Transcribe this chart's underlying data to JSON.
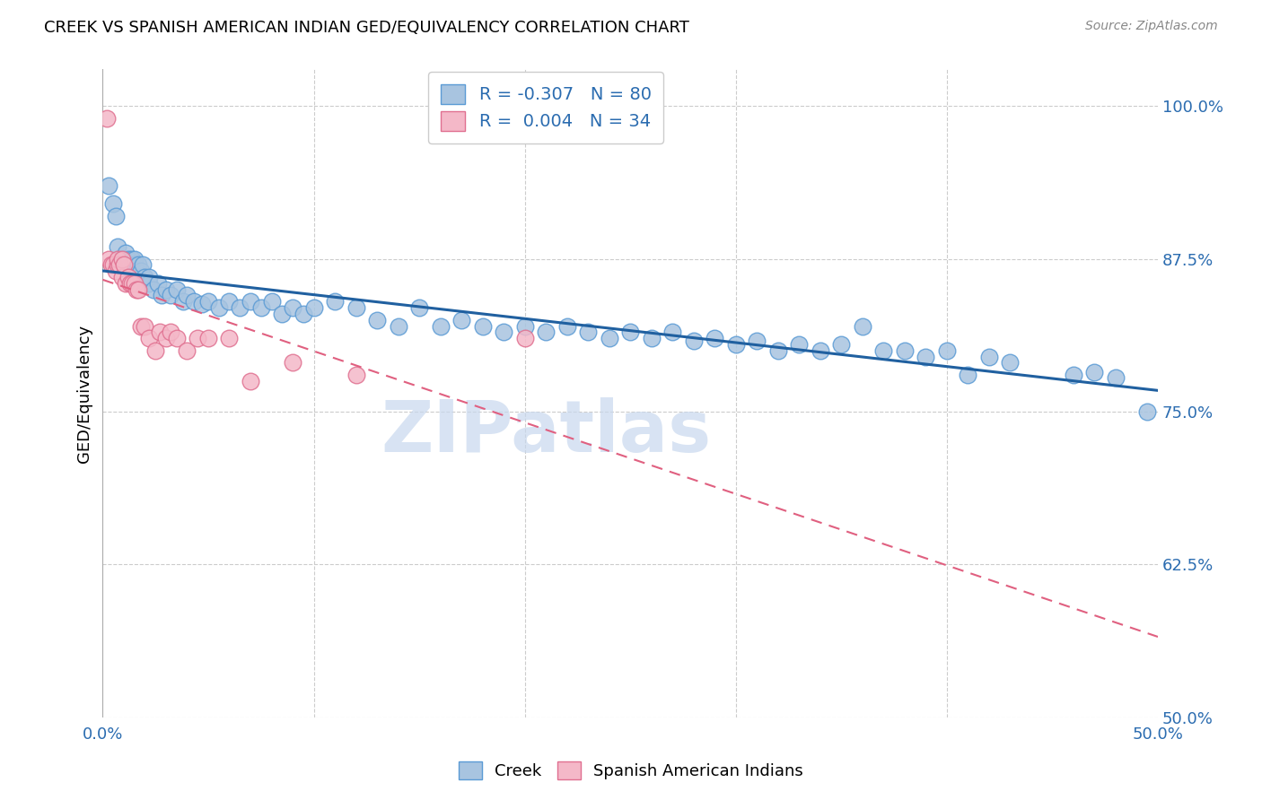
{
  "title": "CREEK VS SPANISH AMERICAN INDIAN GED/EQUIVALENCY CORRELATION CHART",
  "source": "Source: ZipAtlas.com",
  "ylabel": "GED/Equivalency",
  "xlim": [
    0.0,
    0.5
  ],
  "ylim": [
    0.5,
    1.03
  ],
  "xticks": [
    0.0,
    0.1,
    0.2,
    0.3,
    0.4,
    0.5
  ],
  "xtick_labels": [
    "0.0%",
    "",
    "",
    "",
    "",
    "50.0%"
  ],
  "ytick_labels": [
    "50.0%",
    "62.5%",
    "75.0%",
    "87.5%",
    "100.0%"
  ],
  "yticks": [
    0.5,
    0.625,
    0.75,
    0.875,
    1.0
  ],
  "creek_color": "#a8c4e0",
  "creek_edge": "#5b9bd5",
  "spanish_color": "#f4b8c8",
  "spanish_edge": "#e07090",
  "trend_creek_color": "#2060a0",
  "trend_spanish_color": "#e06080",
  "legend_creek_label": "R = -0.307   N = 80",
  "legend_spanish_label": "R =  0.004   N = 34",
  "watermark": "ZIPatlas",
  "creek_x": [
    0.003,
    0.005,
    0.006,
    0.007,
    0.008,
    0.009,
    0.009,
    0.01,
    0.011,
    0.012,
    0.013,
    0.014,
    0.015,
    0.015,
    0.016,
    0.017,
    0.018,
    0.018,
    0.019,
    0.02,
    0.022,
    0.022,
    0.024,
    0.026,
    0.028,
    0.03,
    0.032,
    0.035,
    0.038,
    0.04,
    0.043,
    0.047,
    0.05,
    0.055,
    0.06,
    0.065,
    0.07,
    0.075,
    0.08,
    0.085,
    0.09,
    0.095,
    0.1,
    0.11,
    0.12,
    0.13,
    0.14,
    0.15,
    0.16,
    0.17,
    0.18,
    0.19,
    0.2,
    0.21,
    0.22,
    0.23,
    0.24,
    0.25,
    0.26,
    0.27,
    0.28,
    0.29,
    0.3,
    0.31,
    0.32,
    0.33,
    0.34,
    0.35,
    0.36,
    0.37,
    0.38,
    0.39,
    0.4,
    0.41,
    0.42,
    0.43,
    0.46,
    0.47,
    0.48,
    0.495
  ],
  "creek_y": [
    0.935,
    0.92,
    0.91,
    0.885,
    0.875,
    0.875,
    0.87,
    0.875,
    0.88,
    0.875,
    0.87,
    0.875,
    0.87,
    0.875,
    0.865,
    0.87,
    0.86,
    0.865,
    0.87,
    0.86,
    0.855,
    0.86,
    0.85,
    0.855,
    0.845,
    0.85,
    0.845,
    0.85,
    0.84,
    0.845,
    0.84,
    0.838,
    0.84,
    0.835,
    0.84,
    0.835,
    0.84,
    0.835,
    0.84,
    0.83,
    0.835,
    0.83,
    0.835,
    0.84,
    0.835,
    0.825,
    0.82,
    0.835,
    0.82,
    0.825,
    0.82,
    0.815,
    0.82,
    0.815,
    0.82,
    0.815,
    0.81,
    0.815,
    0.81,
    0.815,
    0.808,
    0.81,
    0.805,
    0.808,
    0.8,
    0.805,
    0.8,
    0.805,
    0.82,
    0.8,
    0.8,
    0.795,
    0.8,
    0.78,
    0.795,
    0.79,
    0.78,
    0.782,
    0.778,
    0.75
  ],
  "spanish_x": [
    0.002,
    0.003,
    0.004,
    0.005,
    0.006,
    0.007,
    0.007,
    0.008,
    0.009,
    0.009,
    0.01,
    0.011,
    0.012,
    0.013,
    0.014,
    0.015,
    0.016,
    0.017,
    0.018,
    0.02,
    0.022,
    0.025,
    0.027,
    0.03,
    0.032,
    0.035,
    0.04,
    0.045,
    0.05,
    0.06,
    0.07,
    0.09,
    0.12,
    0.2
  ],
  "spanish_y": [
    0.99,
    0.875,
    0.87,
    0.87,
    0.865,
    0.87,
    0.875,
    0.87,
    0.875,
    0.86,
    0.87,
    0.855,
    0.86,
    0.855,
    0.855,
    0.855,
    0.85,
    0.85,
    0.82,
    0.82,
    0.81,
    0.8,
    0.815,
    0.81,
    0.815,
    0.81,
    0.8,
    0.81,
    0.81,
    0.81,
    0.775,
    0.79,
    0.78,
    0.81
  ]
}
